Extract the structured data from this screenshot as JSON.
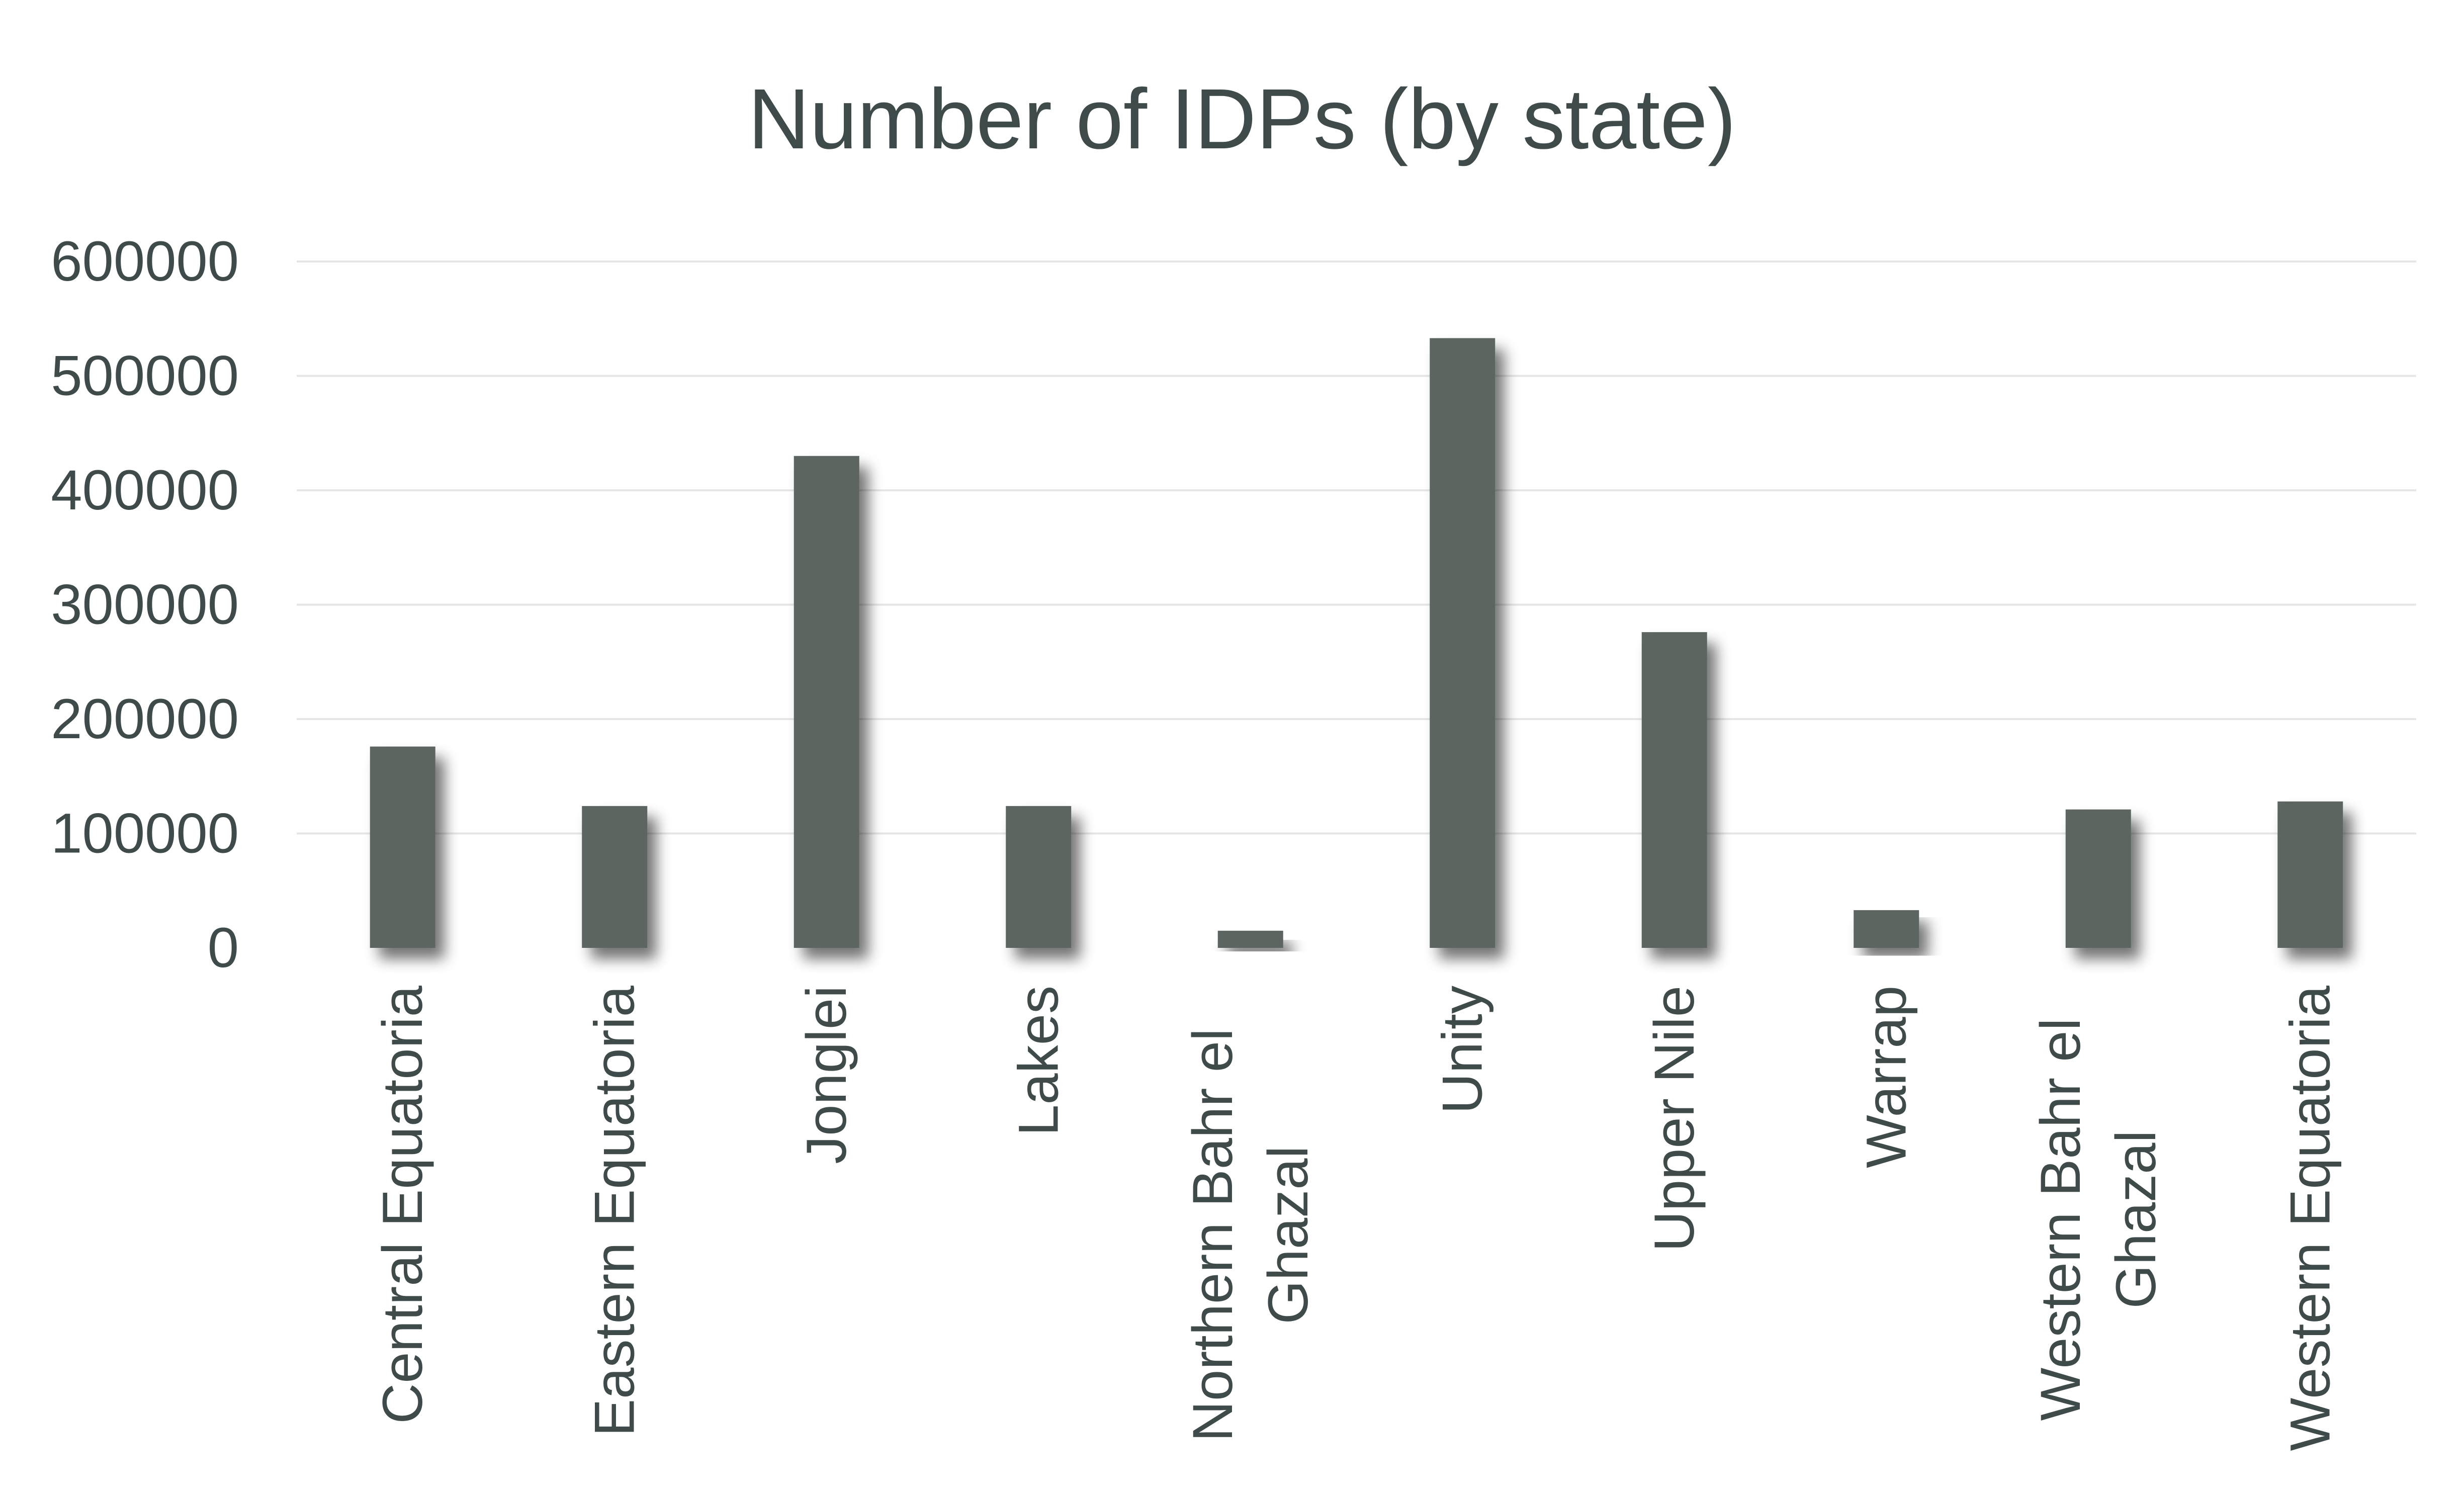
{
  "chart_data": {
    "type": "bar",
    "title": "Number of IDPs (by state)",
    "categories": [
      "Central Equatoria",
      "Eastern Equatoria",
      "Jonglei",
      "Lakes",
      "Northern Bahr el Ghazal",
      "Unity",
      "Upper Nile",
      "Warrap",
      "Western Bahr el Ghazal",
      "Western Equatoria"
    ],
    "category_lines": [
      [
        "Central Equatoria"
      ],
      [
        "Eastern Equatoria"
      ],
      [
        "Jonglei"
      ],
      [
        "Lakes"
      ],
      [
        "Northern Bahr el",
        "Ghazal"
      ],
      [
        "Unity"
      ],
      [
        "Upper Nile"
      ],
      [
        "Warrap"
      ],
      [
        "Western Bahr el",
        "Ghazal"
      ],
      [
        "Western Equatoria"
      ]
    ],
    "values": [
      176000,
      124000,
      430000,
      124000,
      15000,
      533000,
      276000,
      33000,
      121000,
      128000
    ],
    "ylim": [
      0,
      600000
    ],
    "yticks": [
      "0",
      "100000",
      "200000",
      "300000",
      "400000",
      "500000",
      "600000"
    ],
    "xlabel": "",
    "ylabel": "",
    "grid": true,
    "legend": "none",
    "colors": {
      "bar": "#5c6561",
      "text": "#3f4a4a",
      "grid": "#e6e6e6",
      "shadow": "#000000"
    }
  }
}
